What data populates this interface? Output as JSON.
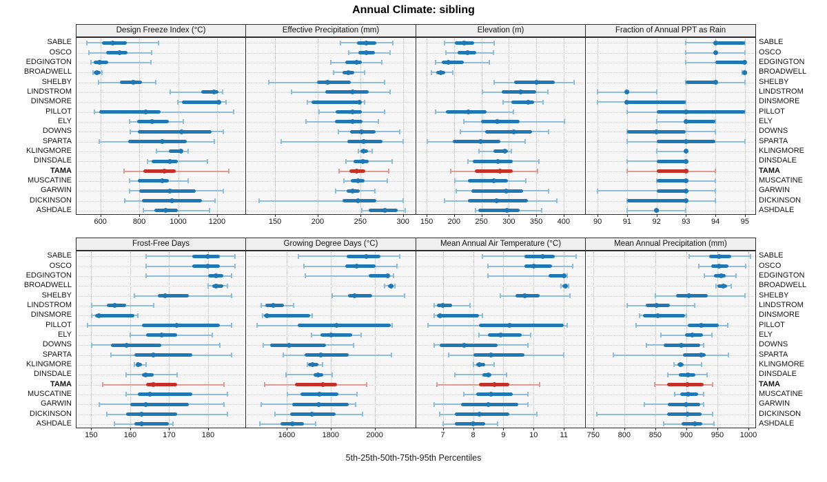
{
  "title": "Annual Climate: sibling",
  "caption": "5th-25th-50th-75th-95th Percentiles",
  "stations": [
    "SABLE",
    "OSCO",
    "EDGINGTON",
    "BROADWELL",
    "SHELBY",
    "LINDSTROM",
    "DINSMORE",
    "PILLOT",
    "ELY",
    "DOWNS",
    "SPARTA",
    "KLINGMORE",
    "DINSDALE",
    "TAMA",
    "MUSCATINE",
    "GARWIN",
    "DICKINSON",
    "ASHDALE"
  ],
  "highlight_station": "TAMA",
  "colors": {
    "series": "#1f77b4",
    "series_light": "#8fbcd9",
    "highlight": "#c43027",
    "highlight_light": "#e09a92",
    "header_bg": "#efefef",
    "plot_bg": "#f7f7f7",
    "border": "#2b2b2b",
    "grid": "#bdbdbd"
  },
  "chart_data": {
    "type": "scatter",
    "subtype": "percentile-interval-dotplot",
    "percentiles": [
      5,
      25,
      50,
      75,
      95
    ],
    "grid": "dotted",
    "note": "Each row: thin line = 5th-95th percentile, thick bar = 25th-75th, dot = median; TAMA highlighted",
    "panels": [
      {
        "title": "Design Freeze Index (°C)",
        "xlim": [
          477,
          1342
        ],
        "xticks": [
          600,
          800,
          1000,
          1200
        ],
        "values": [
          [
            530,
            608,
            664,
            734,
            897
          ],
          [
            542,
            631,
            697,
            740,
            862
          ],
          [
            553,
            565,
            597,
            641,
            859
          ],
          [
            562,
            566,
            583,
            600,
            608
          ],
          [
            592,
            701,
            771,
            813,
            883
          ],
          [
            960,
            1118,
            1185,
            1208,
            1228
          ],
          [
            999,
            1019,
            1208,
            1222,
            1245
          ],
          [
            569,
            594,
            833,
            908,
            1286
          ],
          [
            751,
            790,
            864,
            952,
            1027
          ],
          [
            755,
            794,
            1019,
            1173,
            1232
          ],
          [
            594,
            743,
            918,
            1045,
            1187
          ],
          [
            887,
            952,
            1013,
            1024,
            1050
          ],
          [
            841,
            864,
            957,
            999,
            1150
          ],
          [
            720,
            821,
            929,
            987,
            1259
          ],
          [
            751,
            794,
            918,
            952,
            1050
          ],
          [
            751,
            801,
            957,
            1092,
            1232
          ],
          [
            724,
            813,
            969,
            1123,
            1190
          ],
          [
            821,
            876,
            937,
            999,
            1162
          ]
        ]
      },
      {
        "title": "Effective Precipitation (mm)",
        "xlim": [
          116,
          314
        ],
        "xticks": [
          150,
          200,
          250,
          300
        ],
        "values": [
          [
            227,
            246,
            257,
            269,
            288
          ],
          [
            236,
            248,
            257,
            267,
            285
          ],
          [
            215,
            232,
            246,
            252,
            275
          ],
          [
            219,
            229,
            236,
            243,
            255
          ],
          [
            143,
            199,
            212,
            239,
            278
          ],
          [
            169,
            209,
            241,
            260,
            285
          ],
          [
            188,
            193,
            249,
            252,
            255
          ],
          [
            202,
            221,
            241,
            252,
            278
          ],
          [
            186,
            220,
            241,
            253,
            271
          ],
          [
            224,
            238,
            251,
            268,
            296
          ],
          [
            157,
            235,
            254,
            276,
            300
          ],
          [
            248,
            250,
            254,
            259,
            264
          ],
          [
            233,
            242,
            253,
            260,
            287
          ],
          [
            225,
            237,
            246,
            256,
            283
          ],
          [
            231,
            239,
            247,
            255,
            282
          ],
          [
            221,
            234,
            241,
            249,
            267
          ],
          [
            131,
            229,
            247,
            269,
            300
          ],
          [
            252,
            260,
            279,
            294,
            303
          ]
        ]
      },
      {
        "title": "Elevation (m)",
        "xlim": [
          131,
          438
        ],
        "xticks": [
          150,
          200,
          250,
          300,
          350,
          400
        ],
        "values": [
          [
            182,
            202,
            219,
            237,
            273
          ],
          [
            185,
            207,
            225,
            241,
            272
          ],
          [
            166,
            177,
            189,
            218,
            264
          ],
          [
            159,
            168,
            176,
            184,
            198
          ],
          [
            273,
            310,
            350,
            384,
            419
          ],
          [
            252,
            287,
            321,
            350,
            371
          ],
          [
            289,
            305,
            335,
            346,
            363
          ],
          [
            166,
            185,
            226,
            260,
            308
          ],
          [
            218,
            249,
            279,
            320,
            402
          ],
          [
            211,
            257,
            309,
            343,
            373
          ],
          [
            151,
            198,
            248,
            284,
            330
          ],
          [
            245,
            272,
            292,
            298,
            305
          ],
          [
            225,
            234,
            280,
            307,
            355
          ],
          [
            194,
            238,
            284,
            307,
            352
          ],
          [
            201,
            225,
            272,
            299,
            331
          ],
          [
            204,
            232,
            295,
            326,
            372
          ],
          [
            183,
            225,
            277,
            335,
            388
          ],
          [
            239,
            244,
            296,
            320,
            360
          ]
        ]
      },
      {
        "title": "Fraction of Annual PPT as Rain",
        "xlim": [
          89.6,
          95.33
        ],
        "xticks": [
          90,
          91,
          92,
          93,
          94,
          95
        ],
        "values": [
          [
            93,
            94,
            94,
            95,
            95
          ],
          [
            93,
            94,
            94,
            94,
            95
          ],
          [
            93,
            94,
            95,
            95,
            95
          ],
          [
            94.9,
            95,
            95,
            95,
            95
          ],
          [
            93,
            93,
            94,
            94,
            95
          ],
          [
            90,
            91,
            91,
            91,
            92
          ],
          [
            90,
            91,
            91,
            93,
            93
          ],
          [
            91,
            92,
            93,
            95,
            95
          ],
          [
            92,
            93,
            93,
            94,
            94
          ],
          [
            91,
            91,
            92,
            93,
            94
          ],
          [
            91,
            92,
            93,
            94,
            95
          ],
          [
            92,
            93,
            93,
            93,
            93
          ],
          [
            91,
            92,
            93,
            93,
            93
          ],
          [
            91,
            92,
            93,
            93,
            94
          ],
          [
            92,
            92,
            93,
            93,
            94
          ],
          [
            90,
            92,
            93,
            93,
            94
          ],
          [
            91,
            91,
            93,
            93,
            94
          ],
          [
            91,
            92,
            92,
            92,
            93
          ]
        ]
      },
      {
        "title": "Frost-Free Days",
        "xlim": [
          146.2,
          189.4
        ],
        "xticks": [
          150,
          160,
          170,
          180
        ],
        "values": [
          [
            164,
            176,
            180,
            183,
            187
          ],
          [
            164,
            176,
            180,
            183,
            187
          ],
          [
            164,
            180,
            182,
            184,
            186
          ],
          [
            180,
            181,
            182,
            184,
            185
          ],
          [
            161,
            167,
            169,
            175,
            186
          ],
          [
            150,
            154,
            156,
            159,
            166
          ],
          [
            150,
            151,
            152,
            161,
            162
          ],
          [
            149,
            163,
            172,
            183,
            186
          ],
          [
            160,
            164,
            168,
            172,
            181
          ],
          [
            150,
            155,
            159,
            168,
            183
          ],
          [
            155,
            161,
            166,
            176,
            186
          ],
          [
            161,
            162,
            162,
            163,
            164
          ],
          [
            159,
            163,
            164,
            166,
            172
          ],
          [
            153,
            164,
            166,
            172,
            184
          ],
          [
            159,
            162,
            165,
            176,
            185
          ],
          [
            152,
            160,
            164,
            175,
            184
          ],
          [
            154,
            159,
            163,
            172,
            185
          ],
          [
            156,
            161,
            163,
            170,
            171
          ]
        ]
      },
      {
        "title": "Growing Degree Days (°C)",
        "xlim": [
          1415,
          2183
        ],
        "xticks": [
          1600,
          1800,
          2000
        ],
        "values": [
          [
            1652,
            1873,
            1962,
            2026,
            2114
          ],
          [
            1677,
            1866,
            1917,
            2005,
            2100
          ],
          [
            1683,
            1974,
            2059,
            2069,
            2086
          ],
          [
            2045,
            2060,
            2076,
            2086,
            2093
          ],
          [
            1807,
            1879,
            1907,
            1990,
            2135
          ],
          [
            1483,
            1504,
            1540,
            1587,
            1631
          ],
          [
            1490,
            1497,
            1509,
            1708,
            1716
          ],
          [
            1466,
            1649,
            1827,
            2073,
            2078
          ],
          [
            1714,
            1752,
            1801,
            1897,
            1938
          ],
          [
            1493,
            1524,
            1612,
            1780,
            1904
          ],
          [
            1583,
            1680,
            1755,
            1883,
            2076
          ],
          [
            1693,
            1697,
            1716,
            1745,
            1762
          ],
          [
            1597,
            1721,
            1742,
            1765,
            1807
          ],
          [
            1501,
            1638,
            1765,
            1828,
            1962
          ],
          [
            1604,
            1664,
            1749,
            1835,
            1921
          ],
          [
            1483,
            1625,
            1745,
            1883,
            1914
          ],
          [
            1545,
            1614,
            1714,
            1821,
            1945
          ],
          [
            1476,
            1573,
            1628,
            1677,
            1731
          ]
        ]
      },
      {
        "title": "Mean Annual Air Temperature (°C)",
        "xlim": [
          6.12,
          11.68
        ],
        "xticks": [
          7,
          8,
          9,
          10,
          11
        ],
        "values": [
          [
            8.3,
            9.7,
            10.3,
            10.7,
            11.4
          ],
          [
            8.5,
            9.7,
            10.0,
            10.6,
            11.3
          ],
          [
            8.5,
            10.5,
            11.0,
            11.05,
            11.1
          ],
          [
            10.9,
            10.95,
            11.05,
            11.1,
            11.15
          ],
          [
            8.9,
            9.4,
            9.7,
            10.2,
            11.2
          ],
          [
            6.7,
            6.8,
            7.0,
            7.3,
            7.9
          ],
          [
            6.7,
            6.8,
            6.9,
            8.2,
            8.3
          ],
          [
            6.5,
            8.2,
            9.2,
            11.0,
            11.1
          ],
          [
            8.2,
            8.5,
            8.9,
            9.6,
            9.9
          ],
          [
            6.7,
            6.9,
            7.7,
            8.8,
            9.8
          ],
          [
            7.2,
            8.0,
            8.6,
            9.7,
            11.0
          ],
          [
            8.0,
            8.1,
            8.2,
            8.4,
            8.7
          ],
          [
            7.4,
            8.3,
            8.5,
            8.6,
            9.1
          ],
          [
            6.8,
            8.2,
            8.7,
            9.2,
            10.2
          ],
          [
            7.7,
            8.1,
            8.6,
            9.3,
            9.8
          ],
          [
            6.7,
            7.6,
            8.5,
            9.5,
            9.8
          ],
          [
            6.9,
            7.4,
            8.2,
            9.2,
            10.1
          ],
          [
            7.0,
            7.4,
            8.0,
            8.4,
            8.8
          ]
        ]
      },
      {
        "title": "Mean Annual Precipitation (mm)",
        "xlim": [
          738,
          1010
        ],
        "xticks": [
          750,
          800,
          850,
          900,
          950,
          1000
        ],
        "values": [
          [
            905,
            937,
            953,
            972,
            1003
          ],
          [
            920,
            940,
            953,
            968,
            995
          ],
          [
            929,
            944,
            956,
            963,
            980
          ],
          [
            948,
            950,
            959,
            965,
            972
          ],
          [
            850,
            883,
            904,
            935,
            994
          ],
          [
            805,
            835,
            852,
            873,
            913
          ],
          [
            825,
            830,
            854,
            898,
            900
          ],
          [
            819,
            902,
            924,
            952,
            967
          ],
          [
            859,
            898,
            909,
            927,
            941
          ],
          [
            836,
            863,
            892,
            922,
            928
          ],
          [
            782,
            895,
            924,
            931,
            968
          ],
          [
            880,
            886,
            891,
            896,
            924
          ],
          [
            870,
            888,
            903,
            915,
            933
          ],
          [
            849,
            869,
            902,
            928,
            942
          ],
          [
            881,
            890,
            903,
            919,
            928
          ],
          [
            832,
            870,
            900,
            922,
            928
          ],
          [
            756,
            869,
            902,
            924,
            942
          ],
          [
            863,
            892,
            914,
            926,
            944
          ]
        ]
      }
    ]
  }
}
